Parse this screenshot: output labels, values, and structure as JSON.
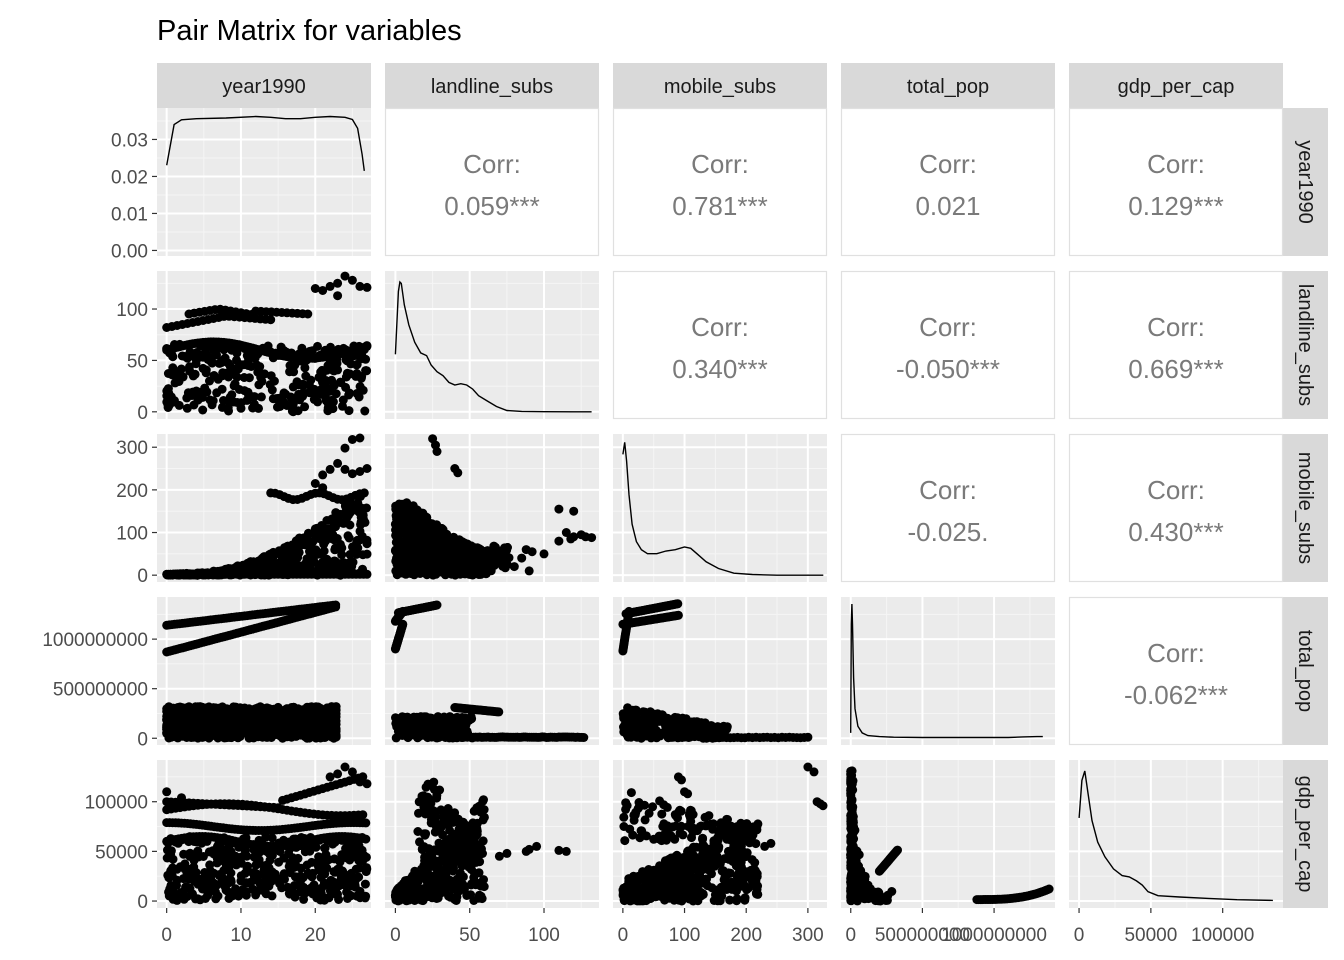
{
  "chart_data": {
    "type": "scatter",
    "title": "Pair Matrix for variables",
    "variables": [
      "year1990",
      "landline_subs",
      "mobile_subs",
      "total_pop",
      "gdp_per_cap"
    ],
    "axes": {
      "year1990": {
        "range": [
          -1.3,
          27.5
        ],
        "ticks": [
          0,
          10,
          20
        ]
      },
      "landline_subs": {
        "range": [
          -7,
          137
        ],
        "ticks": [
          0,
          50,
          100
        ]
      },
      "mobile_subs": {
        "range": [
          -16,
          331
        ],
        "ticks": [
          0,
          100,
          200,
          300
        ]
      },
      "total_pop": {
        "range": [
          -68000000,
          1425000000
        ],
        "ticks": [
          0,
          500000000,
          1000000000
        ]
      },
      "gdp_per_cap": {
        "range": [
          -7000,
          142000
        ],
        "ticks": [
          0,
          50000,
          100000
        ]
      }
    },
    "density_y_axis": {
      "range": [
        -0.0015,
        0.0385
      ],
      "ticks": [
        0.0,
        0.01,
        0.02,
        0.03
      ],
      "tick_labels": [
        "0.00",
        "0.01",
        "0.02",
        "0.03"
      ]
    },
    "tick_labels": {
      "year1990": [
        "0",
        "10",
        "20"
      ],
      "landline_subs": [
        "0",
        "50",
        "100"
      ],
      "mobile_subs": [
        "0",
        "100",
        "200",
        "300"
      ],
      "total_pop": [
        "0",
        "500000000",
        "1000000000"
      ],
      "gdp_per_cap": [
        "0",
        "50000",
        "100000"
      ]
    },
    "correlations": [
      {
        "x": "landline_subs",
        "y": "year1990",
        "label": "Corr:",
        "value": "0.059***"
      },
      {
        "x": "mobile_subs",
        "y": "year1990",
        "label": "Corr:",
        "value": "0.781***"
      },
      {
        "x": "total_pop",
        "y": "year1990",
        "label": "Corr:",
        "value": "0.021"
      },
      {
        "x": "gdp_per_cap",
        "y": "year1990",
        "label": "Corr:",
        "value": "0.129***"
      },
      {
        "x": "mobile_subs",
        "y": "landline_subs",
        "label": "Corr:",
        "value": "0.340***"
      },
      {
        "x": "total_pop",
        "y": "landline_subs",
        "label": "Corr:",
        "value": "-0.050***"
      },
      {
        "x": "gdp_per_cap",
        "y": "landline_subs",
        "label": "Corr:",
        "value": "0.669***"
      },
      {
        "x": "total_pop",
        "y": "mobile_subs",
        "label": "Corr:",
        "value": "-0.025."
      },
      {
        "x": "gdp_per_cap",
        "y": "mobile_subs",
        "label": "Corr:",
        "value": "0.430***"
      },
      {
        "x": "gdp_per_cap",
        "y": "total_pop",
        "label": "Corr:",
        "value": "-0.062***"
      }
    ],
    "densities": {
      "year1990": [
        [
          0,
          0.023
        ],
        [
          1,
          0.034
        ],
        [
          2,
          0.0353
        ],
        [
          4,
          0.0356
        ],
        [
          8,
          0.0358
        ],
        [
          12,
          0.0362
        ],
        [
          14,
          0.036
        ],
        [
          16,
          0.0356
        ],
        [
          18,
          0.0356
        ],
        [
          20,
          0.036
        ],
        [
          22,
          0.0362
        ],
        [
          24,
          0.036
        ],
        [
          25,
          0.0354
        ],
        [
          25.7,
          0.033
        ],
        [
          26.3,
          0.026
        ],
        [
          26.6,
          0.0215
        ]
      ],
      "landline_subs": [
        [
          0,
          0.43
        ],
        [
          2,
          0.9
        ],
        [
          3,
          0.97
        ],
        [
          4,
          0.96
        ],
        [
          6,
          0.8
        ],
        [
          9,
          0.65
        ],
        [
          13,
          0.52
        ],
        [
          17,
          0.44
        ],
        [
          21,
          0.42
        ],
        [
          24,
          0.35
        ],
        [
          28,
          0.3
        ],
        [
          32,
          0.27
        ],
        [
          36,
          0.22
        ],
        [
          40,
          0.2
        ],
        [
          44,
          0.21
        ],
        [
          48,
          0.2
        ],
        [
          52,
          0.17
        ],
        [
          56,
          0.12
        ],
        [
          62,
          0.08
        ],
        [
          68,
          0.04
        ],
        [
          75,
          0.01
        ],
        [
          85,
          0.003
        ],
        [
          100,
          0.001
        ],
        [
          120,
          0.0
        ],
        [
          132,
          0.0
        ]
      ],
      "mobile_subs": [
        [
          0,
          0.9
        ],
        [
          3,
          0.99
        ],
        [
          6,
          0.85
        ],
        [
          10,
          0.6
        ],
        [
          15,
          0.38
        ],
        [
          22,
          0.25
        ],
        [
          30,
          0.19
        ],
        [
          40,
          0.16
        ],
        [
          55,
          0.16
        ],
        [
          70,
          0.18
        ],
        [
          85,
          0.19
        ],
        [
          100,
          0.21
        ],
        [
          110,
          0.2
        ],
        [
          120,
          0.16
        ],
        [
          135,
          0.1
        ],
        [
          155,
          0.05
        ],
        [
          180,
          0.015
        ],
        [
          210,
          0.005
        ],
        [
          250,
          0.0
        ],
        [
          300,
          0.0
        ],
        [
          325,
          0.0
        ]
      ],
      "total_pop": [
        [
          0,
          0.04
        ],
        [
          4000000,
          0.85
        ],
        [
          8000000,
          1.0
        ],
        [
          12000000,
          0.85
        ],
        [
          20000000,
          0.45
        ],
        [
          30000000,
          0.22
        ],
        [
          50000000,
          0.09
        ],
        [
          80000000,
          0.04
        ],
        [
          120000000,
          0.02
        ],
        [
          200000000,
          0.012
        ],
        [
          300000000,
          0.008
        ],
        [
          500000000,
          0.006
        ],
        [
          800000000,
          0.006
        ],
        [
          1100000000,
          0.006
        ],
        [
          1200000000,
          0.01
        ],
        [
          1300000000,
          0.012
        ],
        [
          1340000000,
          0.012
        ]
      ],
      "gdp_per_cap": [
        [
          0,
          0.62
        ],
        [
          2000,
          0.9
        ],
        [
          4000,
          0.97
        ],
        [
          6000,
          0.82
        ],
        [
          9000,
          0.6
        ],
        [
          13000,
          0.44
        ],
        [
          18000,
          0.33
        ],
        [
          24000,
          0.24
        ],
        [
          30000,
          0.19
        ],
        [
          35000,
          0.18
        ],
        [
          40000,
          0.15
        ],
        [
          44000,
          0.12
        ],
        [
          48000,
          0.07
        ],
        [
          55000,
          0.04
        ],
        [
          70000,
          0.03
        ],
        [
          90000,
          0.02
        ],
        [
          110000,
          0.01
        ],
        [
          135000,
          0.005
        ]
      ]
    }
  }
}
